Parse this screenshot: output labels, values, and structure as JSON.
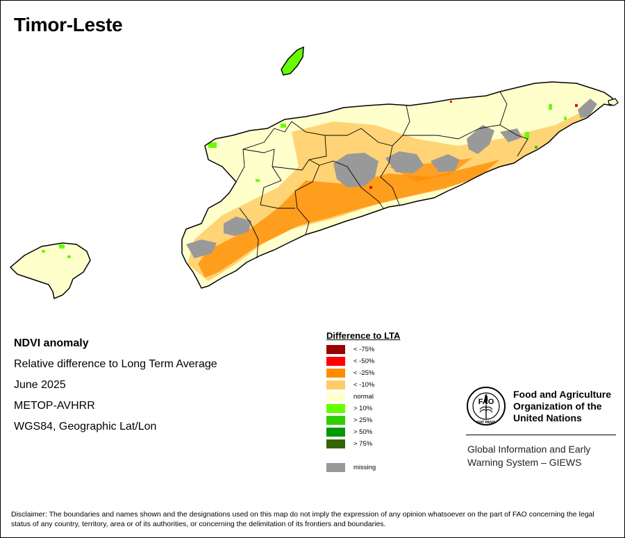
{
  "map": {
    "title": "Timor-Leste",
    "info": {
      "line1": "NDVI anomaly",
      "line2": "Relative difference to Long Term Average",
      "line3": "June 2025",
      "line4": "METOP-AVHRR",
      "line5": "WGS84, Geographic Lat/Lon"
    }
  },
  "legend": {
    "title": "Difference to LTA",
    "items": [
      {
        "label": "< -75%",
        "color": "#990000"
      },
      {
        "label": "< -50%",
        "color": "#ff0000"
      },
      {
        "label": "< -25%",
        "color": "#ff8c00"
      },
      {
        "label": "< -10%",
        "color": "#ffcc66"
      },
      {
        "label": "normal",
        "color": "#ffffcc"
      },
      {
        "label": "> 10%",
        "color": "#66ff00"
      },
      {
        "label": "> 25%",
        "color": "#33cc00"
      },
      {
        "label": "> 50%",
        "color": "#009900"
      },
      {
        "label": "> 75%",
        "color": "#336600"
      }
    ],
    "missing": {
      "label": "missing",
      "color": "#999999"
    }
  },
  "fao": {
    "logo_letters": "FAO",
    "logo_motto": "FIAT PANIS",
    "name_line1": "Food and Agriculture",
    "name_line2": "Organization of the",
    "name_line3": "United Nations",
    "giews_line1": "Global Information and Early",
    "giews_line2": "Warning System – GIEWS"
  },
  "disclaimer": "Disclaimer: The boundaries and names shown and the designations used on this map do not imply the expression of any opinion whatsoever on the part of FAO concerning the legal status of any country, territory, area or of its authorities, or concerning the delimitation of its frontiers and boundaries."
}
